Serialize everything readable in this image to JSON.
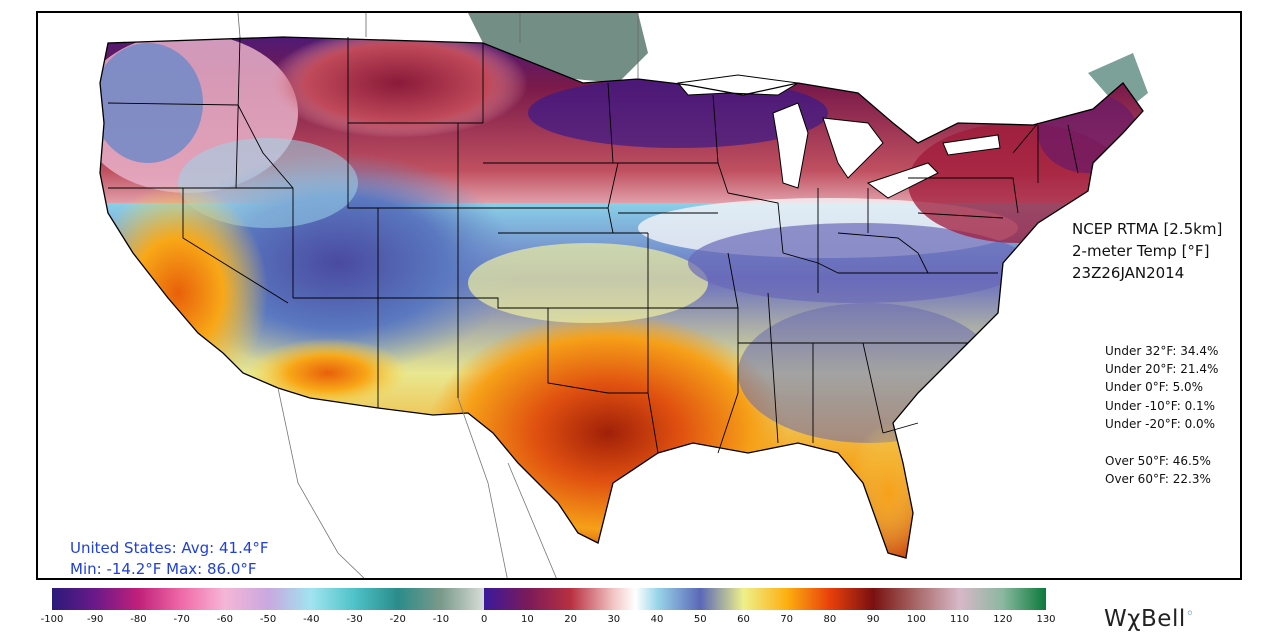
{
  "product": {
    "line1": "NCEP RTMA [2.5km]",
    "line2": "2-meter Temp [°F]",
    "line3": "23Z26JAN2014"
  },
  "stats_under": [
    "Under 32°F: 34.4%",
    "Under 20°F: 21.4%",
    "Under 0°F: 5.0%",
    "Under -10°F: 0.1%",
    "Under -20°F: 0.0%"
  ],
  "stats_over": [
    "Over 50°F: 46.5%",
    "Over 60°F: 22.3%"
  ],
  "summary": {
    "line1": "United States: Avg:  41.4°F",
    "line2": "Min: -14.2°F Max:  86.0°F"
  },
  "colorbar": {
    "min": -100,
    "max": 130,
    "tick_labels": [
      "-100",
      "-90",
      "-80",
      "-70",
      "-60",
      "-50",
      "-40",
      "-30",
      "-20",
      "-10",
      "0",
      "10",
      "20",
      "30",
      "40",
      "50",
      "60",
      "70",
      "80",
      "90",
      "100",
      "110",
      "120",
      "130"
    ],
    "stops": [
      {
        "v": -100,
        "c": "#2a1a7a"
      },
      {
        "v": -90,
        "c": "#6a1a8a"
      },
      {
        "v": -80,
        "c": "#c0207a"
      },
      {
        "v": -70,
        "c": "#f06aa8"
      },
      {
        "v": -60,
        "c": "#f6b6d6"
      },
      {
        "v": -50,
        "c": "#c9a8e0"
      },
      {
        "v": -40,
        "c": "#a0e4f0"
      },
      {
        "v": -30,
        "c": "#4ec2c8"
      },
      {
        "v": -20,
        "c": "#2a8c8a"
      },
      {
        "v": -10,
        "c": "#7a9a8a"
      },
      {
        "v": -0.01,
        "c": "#d8ddd8"
      },
      {
        "v": 0,
        "c": "#3a1a9a"
      },
      {
        "v": 10,
        "c": "#7a1a5a"
      },
      {
        "v": 20,
        "c": "#b83040"
      },
      {
        "v": 30,
        "c": "#f2c6c6"
      },
      {
        "v": 35,
        "c": "#ffffff"
      },
      {
        "v": 40,
        "c": "#9ad6ea"
      },
      {
        "v": 50,
        "c": "#5a68b8"
      },
      {
        "v": 60,
        "c": "#eef08a"
      },
      {
        "v": 70,
        "c": "#fdb010"
      },
      {
        "v": 80,
        "c": "#e8400a"
      },
      {
        "v": 90,
        "c": "#7a1010"
      },
      {
        "v": 100,
        "c": "#a86868"
      },
      {
        "v": 110,
        "c": "#d8b8c8"
      },
      {
        "v": 120,
        "c": "#8ab8a0"
      },
      {
        "v": 130,
        "c": "#0a7a3a"
      }
    ]
  },
  "logo": {
    "text": "WχBell"
  }
}
